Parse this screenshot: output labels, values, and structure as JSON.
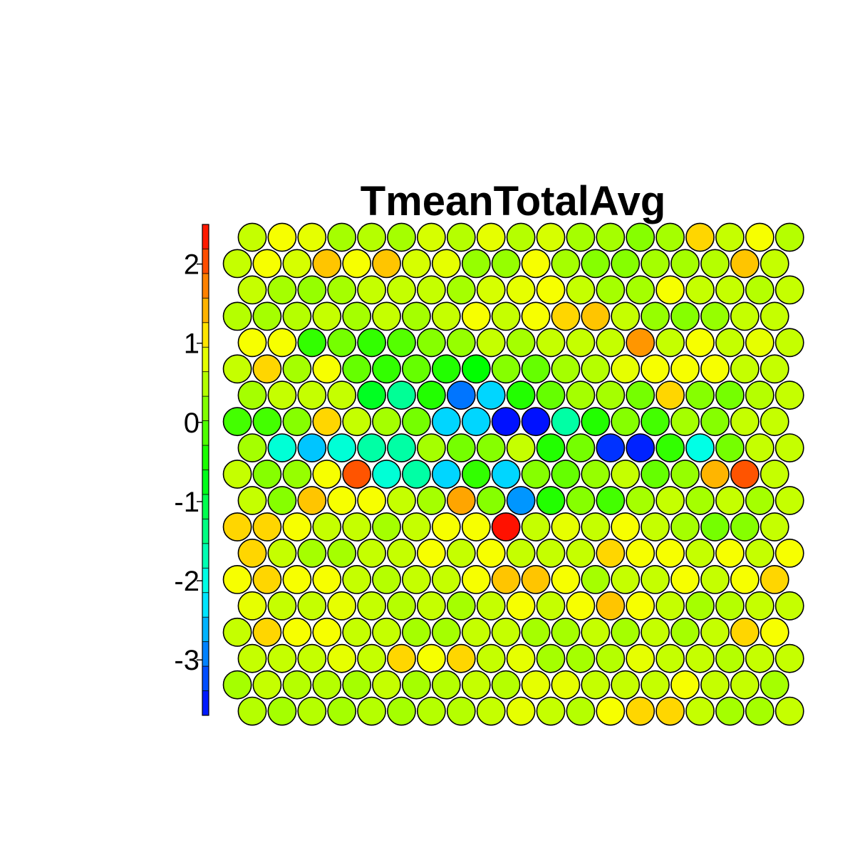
{
  "chart_data": {
    "type": "heatmap",
    "title": "TmeanTotalAvg",
    "layout": "hexagonal",
    "rows": 19,
    "cols": 19,
    "colorbar": {
      "ticks": [
        2,
        1,
        0,
        -1,
        -2,
        -3
      ],
      "tick_labels": [
        "2",
        "1",
        "0",
        "-1",
        "-2",
        "-3"
      ],
      "range": [
        -3.7,
        2.5
      ],
      "bands": 20,
      "palette": [
        "#0000ff",
        "#0041ff",
        "#0082ff",
        "#00bfff",
        "#00ffff",
        "#00ffbf",
        "#00ff82",
        "#00ff41",
        "#00ff00",
        "#41ff00",
        "#82ff00",
        "#bfff00",
        "#ffff00",
        "#ffbf00",
        "#ff8200",
        "#ff4100",
        "#ff0000"
      ]
    },
    "values": [
      [
        0.6,
        0.9,
        0.8,
        0.4,
        0.5,
        0.4,
        0.7,
        0.5,
        0.8,
        0.5,
        0.7,
        0.4,
        0.4,
        0.2,
        0.4,
        1.2,
        0.6,
        0.9,
        0.5
      ],
      [
        0.6,
        0.9,
        0.7,
        1.3,
        0.9,
        1.3,
        0.7,
        0.8,
        0.3,
        0.3,
        0.9,
        0.4,
        0.2,
        0.2,
        0.4,
        0.4,
        0.5,
        1.3,
        0.6
      ],
      [
        0.6,
        0.4,
        0.3,
        0.4,
        0.6,
        0.6,
        0.6,
        0.4,
        0.7,
        0.8,
        0.9,
        0.6,
        0.4,
        0.4,
        0.9,
        0.6,
        0.6,
        0.5,
        0.6
      ],
      [
        0.5,
        0.4,
        0.5,
        0.6,
        0.4,
        0.6,
        0.4,
        0.6,
        0.9,
        0.6,
        0.9,
        1.2,
        1.3,
        0.6,
        0.3,
        0.2,
        0.3,
        0.6,
        0.6
      ],
      [
        0.9,
        0.9,
        -0.3,
        0.1,
        -0.3,
        -0.1,
        0.2,
        0.3,
        0.6,
        0.4,
        0.6,
        0.6,
        0.6,
        1.6,
        0.6,
        0.9,
        0.6,
        0.8,
        0.6
      ],
      [
        0.6,
        1.2,
        0.4,
        0.9,
        0.0,
        -0.3,
        0.0,
        -0.4,
        -0.6,
        0.2,
        0.0,
        0.4,
        0.5,
        0.8,
        0.9,
        0.9,
        0.9,
        0.6,
        0.6
      ],
      [
        0.4,
        0.6,
        0.6,
        0.6,
        -0.8,
        -1.5,
        -0.4,
        -3.0,
        -2.4,
        -0.4,
        0.0,
        0.4,
        0.4,
        0.1,
        1.2,
        0.2,
        0.1,
        0.5,
        0.6
      ],
      [
        -0.2,
        -0.2,
        0.2,
        1.2,
        0.6,
        0.4,
        0.1,
        -2.4,
        -2.4,
        -3.6,
        -3.6,
        -1.6,
        -0.4,
        0.2,
        -0.2,
        0.4,
        0.2,
        0.6,
        0.6
      ],
      [
        0.4,
        -1.9,
        -2.5,
        -1.9,
        -1.6,
        -1.6,
        0.4,
        0.1,
        0.2,
        0.6,
        -0.4,
        0.1,
        -3.4,
        -3.5,
        -0.3,
        -2.0,
        0.1,
        0.6,
        0.6
      ],
      [
        0.6,
        0.2,
        0.3,
        0.9,
        2.0,
        -1.9,
        -1.6,
        -2.4,
        -0.3,
        -2.4,
        0.2,
        0.0,
        0.3,
        0.6,
        0.0,
        0.3,
        1.4,
        2.0,
        0.6
      ],
      [
        0.6,
        0.2,
        1.3,
        0.9,
        0.9,
        0.6,
        0.4,
        1.5,
        0.2,
        -2.8,
        -0.4,
        0.2,
        -0.2,
        0.4,
        0.6,
        0.4,
        0.6,
        0.4,
        0.6
      ],
      [
        1.2,
        1.2,
        0.9,
        0.6,
        0.6,
        0.4,
        0.6,
        0.9,
        0.9,
        2.4,
        0.6,
        0.8,
        0.6,
        0.9,
        0.6,
        0.4,
        0.1,
        0.2,
        0.6
      ],
      [
        1.2,
        0.6,
        0.4,
        0.4,
        0.6,
        0.6,
        0.9,
        0.6,
        0.9,
        0.6,
        0.6,
        0.6,
        1.2,
        0.9,
        0.9,
        0.6,
        0.9,
        0.6,
        0.9
      ],
      [
        0.9,
        1.2,
        0.9,
        0.9,
        0.6,
        0.5,
        0.6,
        0.6,
        0.9,
        1.3,
        1.3,
        0.9,
        0.4,
        0.6,
        0.6,
        0.9,
        0.6,
        0.9,
        1.2
      ],
      [
        0.8,
        0.6,
        0.6,
        0.8,
        0.6,
        0.5,
        0.6,
        0.4,
        0.6,
        0.9,
        0.6,
        0.9,
        1.3,
        0.9,
        0.6,
        0.4,
        0.5,
        0.6,
        0.6
      ],
      [
        0.6,
        1.2,
        0.9,
        0.9,
        0.6,
        0.6,
        0.4,
        0.4,
        0.6,
        0.6,
        0.4,
        0.4,
        0.6,
        0.4,
        0.6,
        0.4,
        0.6,
        1.2,
        0.9
      ],
      [
        0.6,
        0.6,
        0.6,
        0.8,
        0.6,
        1.2,
        0.9,
        1.2,
        0.6,
        0.8,
        0.4,
        0.4,
        0.5,
        0.8,
        0.6,
        0.6,
        0.5,
        0.6,
        0.6
      ],
      [
        0.4,
        0.6,
        0.5,
        0.5,
        0.4,
        0.6,
        0.4,
        0.5,
        0.6,
        0.5,
        0.8,
        0.8,
        0.6,
        0.6,
        0.6,
        0.9,
        0.6,
        0.6,
        0.4
      ],
      [
        0.5,
        0.4,
        0.5,
        0.4,
        0.5,
        0.4,
        0.5,
        0.5,
        0.6,
        0.8,
        0.6,
        0.5,
        0.9,
        1.2,
        1.2,
        0.6,
        0.4,
        0.4,
        0.6
      ]
    ]
  }
}
